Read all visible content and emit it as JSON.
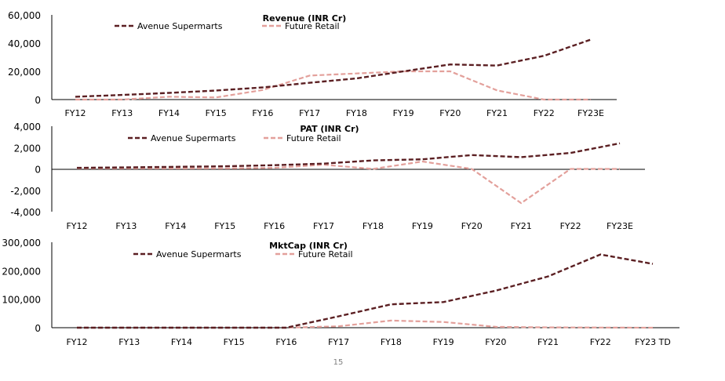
{
  "page_number": "15",
  "colors": {
    "avenue": "#5b1f22",
    "future": "#e3a09b",
    "axis": "#000000",
    "background": "#ffffff"
  },
  "chart_data": [
    {
      "type": "line",
      "title": "Revenue (INR Cr)",
      "categories": [
        "FY12",
        "FY13",
        "FY14",
        "FY15",
        "FY16",
        "FY17",
        "FY18",
        "FY19",
        "FY20",
        "FY21",
        "FY22",
        "FY23E"
      ],
      "series": [
        {
          "name": "Avenue Supermarts",
          "values": [
            2000,
            3300,
            4700,
            6400,
            8600,
            11900,
            15000,
            20000,
            24900,
            24100,
            31000,
            42500
          ]
        },
        {
          "name": "Future Retail",
          "values": [
            0,
            0,
            2000,
            1500,
            6800,
            17000,
            18500,
            20000,
            20000,
            6500,
            0,
            0
          ]
        }
      ],
      "y_ticks": [
        "0",
        "20,000",
        "40,000",
        "60,000"
      ],
      "ylim": [
        0,
        60000
      ],
      "legend": "top",
      "grid": false
    },
    {
      "type": "line",
      "title": "PAT (INR Cr)",
      "categories": [
        "FY12",
        "FY13",
        "FY14",
        "FY15",
        "FY16",
        "FY17",
        "FY18",
        "FY19",
        "FY20",
        "FY21",
        "FY22",
        "FY23E"
      ],
      "series": [
        {
          "name": "Avenue Supermarts",
          "values": [
            100,
            150,
            200,
            250,
            350,
            500,
            800,
            900,
            1300,
            1100,
            1500,
            2400
          ]
        },
        {
          "name": "Future Retail",
          "values": [
            50,
            50,
            50,
            50,
            100,
            400,
            0,
            700,
            0,
            -3200,
            0,
            0
          ]
        }
      ],
      "y_ticks": [
        "-4,000",
        "-2,000",
        "0",
        "2,000",
        "4,000"
      ],
      "ylim": [
        -4000,
        4000
      ],
      "legend": "top",
      "grid": false
    },
    {
      "type": "line",
      "title": "MktCap (INR Cr)",
      "categories": [
        "FY12",
        "FY13",
        "FY14",
        "FY15",
        "FY16",
        "FY17",
        "FY18",
        "FY19",
        "FY20",
        "FY21",
        "FY22",
        "FY23 TD"
      ],
      "series": [
        {
          "name": "Avenue Supermarts",
          "values": [
            0,
            0,
            0,
            0,
            0,
            40000,
            82000,
            90000,
            130000,
            180000,
            257000,
            224000
          ]
        },
        {
          "name": "Future Retail",
          "values": [
            0,
            0,
            0,
            0,
            0,
            5000,
            25000,
            20000,
            3000,
            1000,
            500,
            0
          ]
        }
      ],
      "y_ticks": [
        "0",
        "100,000",
        "200,000",
        "300,000"
      ],
      "ylim": [
        0,
        300000
      ],
      "legend": "top",
      "grid": false
    }
  ]
}
